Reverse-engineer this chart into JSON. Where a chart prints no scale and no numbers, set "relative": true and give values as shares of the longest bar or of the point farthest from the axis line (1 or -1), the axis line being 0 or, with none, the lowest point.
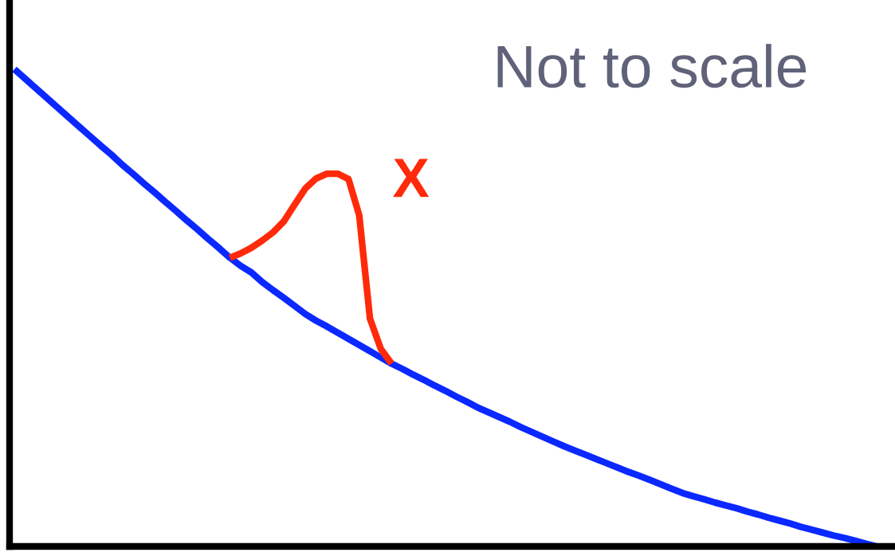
{
  "chart_data": {
    "type": "line",
    "relative": true,
    "tick_labels": false,
    "marker": "none",
    "line_style": "solid",
    "annotations": [
      "Not to scale"
    ],
    "categories": [
      null,
      null,
      null,
      null,
      null,
      null,
      null,
      null,
      null,
      null,
      null,
      null,
      null,
      null,
      null,
      null,
      null,
      null,
      null,
      null,
      null,
      null,
      null,
      null,
      null,
      null,
      null,
      null,
      null,
      null,
      null,
      null,
      null,
      null,
      null,
      null,
      null,
      null,
      null,
      null,
      null,
      null,
      null,
      null,
      null,
      null,
      null,
      null,
      null,
      null,
      null,
      null,
      null,
      null,
      null,
      null,
      null,
      null,
      null,
      null,
      null,
      null,
      null,
      null,
      null,
      null,
      null,
      null,
      null,
      null,
      null,
      null,
      null,
      null,
      null,
      null,
      null,
      null,
      null,
      null,
      null
    ],
    "series": [
      {
        "color": "#0a28ff",
        "values": [
          1.0,
          0.98,
          0.96,
          0.94,
          0.92,
          0.9,
          0.88,
          0.86,
          0.84,
          0.821,
          0.8,
          0.781,
          0.761,
          0.742,
          0.722,
          0.703,
          0.683,
          0.664,
          0.644,
          0.625,
          0.605,
          0.588,
          0.574,
          0.554,
          0.537,
          0.521,
          0.504,
          0.487,
          0.473,
          0.461,
          0.448,
          0.435,
          0.422,
          0.409,
          0.396,
          0.383,
          0.372,
          0.36,
          0.349,
          0.337,
          0.326,
          0.314,
          0.303,
          0.291,
          0.281,
          0.271,
          0.261,
          0.25,
          0.24,
          0.23,
          0.22,
          0.21,
          0.201,
          0.192,
          0.183,
          0.174,
          0.165,
          0.156,
          0.148,
          0.139,
          0.13,
          0.121,
          0.112,
          0.105,
          0.099,
          0.092,
          0.086,
          0.08,
          0.073,
          0.067,
          0.06,
          0.054,
          0.048,
          0.041,
          0.035,
          0.029,
          0.023,
          0.018,
          0.012,
          0.006,
          0
        ]
      },
      {
        "name": "X",
        "color": "#ff2a0a",
        "values": [
          null,
          null,
          null,
          null,
          null,
          null,
          null,
          null,
          null,
          null,
          null,
          null,
          null,
          null,
          null,
          null,
          null,
          null,
          null,
          null,
          0.605,
          0.614,
          0.626,
          0.641,
          0.658,
          0.681,
          0.716,
          0.75,
          0.771,
          0.781,
          0.781,
          0.77,
          0.694,
          0.477,
          0.414,
          0.383,
          null,
          null,
          null,
          null,
          null,
          null,
          null,
          null,
          null,
          null,
          null,
          null,
          null,
          null,
          null,
          null,
          null,
          null,
          null,
          null,
          null,
          null,
          null,
          null,
          null,
          null,
          null,
          null,
          null,
          null,
          null,
          null,
          null,
          null,
          null,
          null,
          null,
          null,
          null,
          null,
          null,
          null,
          null,
          null,
          null
        ]
      }
    ]
  }
}
